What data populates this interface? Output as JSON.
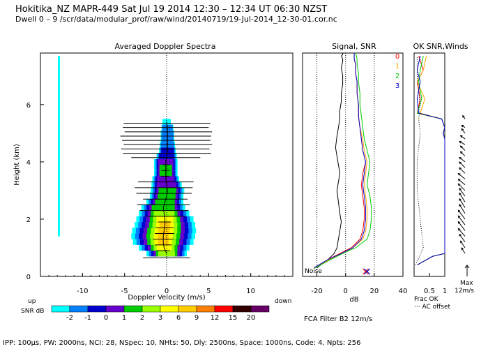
{
  "header": {
    "line1": "Hokitika_NZ   MAPR-449   Sat Jul 19 2014 12:30 – 12:34 UT 06:30 NZST",
    "line2": "Dwell   0 –  9   /scr/data/modular_prof/raw/wind/20140719/19-Jul-2014_12-30-01.cor.nc"
  },
  "footer": {
    "params": "IPP: 100µs,  PW: 2000ns,  NCI:  28,  NSpec: 10, NHts: 50,  Dly: 2500ns,  Space: 1000ns,  Code: 4,  Npts: 256",
    "fca": "FCA Filter B2 12m/s"
  },
  "colorbar": {
    "up_label": "up",
    "down_label": "down",
    "title": "SNR dB",
    "ticks": [
      "-2",
      "-1",
      "0",
      "1",
      "2",
      "3",
      "6",
      "9",
      "12",
      "15",
      "20"
    ],
    "colors": [
      "#00ffff",
      "#0080ff",
      "#0000cc",
      "#6600cc",
      "#00cc00",
      "#99ff00",
      "#ffff00",
      "#ffcc00",
      "#ff8000",
      "#ff0000",
      "#330000",
      "#660066"
    ]
  },
  "chart_data": [
    {
      "type": "heatmap",
      "title": "Averaged Doppler Spectra",
      "xlabel": "Doppler Velocity (m/s)",
      "ylabel": "Height (km)",
      "xlim": [
        -15,
        15
      ],
      "ylim": [
        0,
        7.8
      ],
      "xticks": [
        "-10",
        "-5",
        "0",
        "5",
        "10"
      ],
      "yticks": [
        "0",
        "2",
        "4",
        "6"
      ],
      "profile": [
        {
          "height": 0.8,
          "center": 0.0,
          "width": 2.4,
          "peak": 3
        },
        {
          "height": 1.0,
          "center": -0.3,
          "width": 3.0,
          "peak": 6
        },
        {
          "height": 1.2,
          "center": -0.4,
          "width": 3.6,
          "peak": 9
        },
        {
          "height": 1.4,
          "center": -0.4,
          "width": 3.8,
          "peak": 9
        },
        {
          "height": 1.6,
          "center": -0.3,
          "width": 3.8,
          "peak": 9
        },
        {
          "height": 1.8,
          "center": -0.2,
          "width": 3.6,
          "peak": 9
        },
        {
          "height": 2.0,
          "center": -0.2,
          "width": 3.4,
          "peak": 6
        },
        {
          "height": 2.2,
          "center": -0.3,
          "width": 3.0,
          "peak": 3
        },
        {
          "height": 2.4,
          "center": -0.4,
          "width": 2.6,
          "peak": 2
        },
        {
          "height": 2.6,
          "center": -0.2,
          "width": 2.2,
          "peak": 2
        },
        {
          "height": 2.8,
          "center": 0.0,
          "width": 2.0,
          "peak": 2
        },
        {
          "height": 3.0,
          "center": 0.1,
          "width": 2.0,
          "peak": 2
        },
        {
          "height": 3.2,
          "center": 0.0,
          "width": 1.8,
          "peak": 1
        },
        {
          "height": 3.4,
          "center": -0.1,
          "width": 1.6,
          "peak": 1
        },
        {
          "height": 3.6,
          "center": -0.1,
          "width": 1.4,
          "peak": 2
        },
        {
          "height": 3.8,
          "center": -0.1,
          "width": 1.4,
          "peak": 2
        },
        {
          "height": 4.0,
          "center": -0.1,
          "width": 1.4,
          "peak": 1
        },
        {
          "height": 4.2,
          "center": 0.0,
          "width": 1.2,
          "peak": 0
        },
        {
          "height": 4.4,
          "center": 0.1,
          "width": 1.0,
          "peak": 0
        },
        {
          "height": 4.6,
          "center": 0.1,
          "width": 0.9,
          "peak": -1
        },
        {
          "height": 4.8,
          "center": 0.1,
          "width": 0.8,
          "peak": -1
        },
        {
          "height": 5.0,
          "center": 0.1,
          "width": 0.8,
          "peak": -1
        },
        {
          "height": 5.2,
          "center": 0.1,
          "width": 0.7,
          "peak": -1
        },
        {
          "height": 5.4,
          "center": 0.0,
          "width": 0.5,
          "peak": -2
        }
      ],
      "error_bars": [
        {
          "height": 0.65,
          "low": -2.8,
          "high": 2.8
        },
        {
          "height": 0.9,
          "low": -1.2,
          "high": 0.4
        },
        {
          "height": 1.1,
          "low": -1.4,
          "high": 0.6
        },
        {
          "height": 1.3,
          "low": -1.6,
          "high": 0.8
        },
        {
          "height": 1.5,
          "low": -1.4,
          "high": 0.9
        },
        {
          "height": 1.7,
          "low": -1.3,
          "high": 0.8
        },
        {
          "height": 1.9,
          "low": -1.0,
          "high": 0.5
        },
        {
          "height": 2.1,
          "low": -2.5,
          "high": 2.2
        },
        {
          "height": 2.3,
          "low": -3.2,
          "high": 2.6
        },
        {
          "height": 2.5,
          "low": -3.5,
          "high": 2.8
        },
        {
          "height": 2.7,
          "low": -2.8,
          "high": 2.5
        },
        {
          "height": 2.9,
          "low": -3.6,
          "high": 3.0
        },
        {
          "height": 3.1,
          "low": -3.8,
          "high": 3.1
        },
        {
          "height": 3.3,
          "low": -3.4,
          "high": 3.2
        },
        {
          "height": 3.5,
          "low": -0.7,
          "high": 0.3
        },
        {
          "height": 3.7,
          "low": -0.6,
          "high": 0.3
        },
        {
          "height": 3.9,
          "low": -0.5,
          "high": 0.4
        },
        {
          "height": 4.15,
          "low": -4.2,
          "high": 4.0
        },
        {
          "height": 4.3,
          "low": -5.2,
          "high": 5.3
        },
        {
          "height": 4.45,
          "low": -5.4,
          "high": 5.1
        },
        {
          "height": 4.6,
          "low": -5.1,
          "high": 5.4
        },
        {
          "height": 4.75,
          "low": -5.3,
          "high": 5.2
        },
        {
          "height": 4.9,
          "low": -5.5,
          "high": 5.3
        },
        {
          "height": 5.05,
          "low": -5.0,
          "high": 5.4
        },
        {
          "height": 5.2,
          "low": -5.2,
          "high": 5.0
        },
        {
          "height": 5.35,
          "low": -5.1,
          "high": 5.2
        }
      ],
      "clutter_line": {
        "velocity": -12.8,
        "from": 1.4,
        "to": 7.7
      }
    },
    {
      "type": "line",
      "title": "Signal, SNR",
      "xlabel": "dB",
      "xlim": [
        -30,
        40
      ],
      "ylim": [
        0,
        7.8
      ],
      "xticks": [
        "-20",
        "0",
        "20",
        "40"
      ],
      "noise_label": "Noise",
      "beam_labels": [
        "0",
        "1",
        "2",
        "3"
      ],
      "series": [
        {
          "name": "Signal",
          "color": "#000000",
          "x": [
            -20,
            -12,
            -8,
            -6,
            -5,
            -4,
            -3,
            -4,
            -5,
            -6,
            -5,
            -4,
            -5,
            -6,
            -7,
            -6,
            -5,
            -4,
            -4,
            -3,
            -3,
            -2,
            -2,
            -3,
            -2,
            -2,
            -3,
            -2,
            -2
          ],
          "y": [
            0.3,
            0.6,
            0.8,
            1.0,
            1.3,
            1.6,
            1.9,
            2.2,
            2.6,
            3.0,
            3.3,
            3.6,
            3.9,
            4.2,
            4.5,
            4.9,
            5.2,
            5.5,
            5.8,
            6.1,
            6.4,
            6.7,
            7.0,
            7.3,
            7.5,
            7.6,
            7.7,
            7.75,
            7.8
          ]
        },
        {
          "name": "Beam 0",
          "color": "#ff0000",
          "x": [
            -22,
            -12,
            -4,
            4,
            10,
            12,
            13,
            13,
            12,
            11,
            12,
            14,
            12,
            11,
            10,
            9,
            9,
            8,
            8,
            7,
            7,
            6,
            6
          ],
          "y": [
            0.3,
            0.6,
            0.8,
            1.0,
            1.3,
            1.6,
            2.0,
            2.4,
            2.8,
            3.2,
            3.6,
            4.0,
            4.4,
            4.8,
            5.2,
            5.6,
            6.0,
            6.4,
            6.8,
            7.1,
            7.4,
            7.6,
            7.8
          ]
        },
        {
          "name": "Beam 1",
          "color": "#ffa500",
          "x": [
            -22,
            -11,
            -3,
            5,
            12,
            14,
            15,
            15,
            14,
            13,
            14,
            15,
            13,
            12,
            10,
            9,
            9,
            8,
            8,
            7,
            7,
            6,
            6
          ],
          "y": [
            0.3,
            0.6,
            0.8,
            1.0,
            1.3,
            1.6,
            2.0,
            2.4,
            2.8,
            3.2,
            3.6,
            4.0,
            4.4,
            4.8,
            5.2,
            5.6,
            6.0,
            6.4,
            6.8,
            7.1,
            7.4,
            7.6,
            7.8
          ]
        },
        {
          "name": "Beam 2",
          "color": "#00cc00",
          "x": [
            -21,
            -10,
            -2,
            7,
            15,
            17,
            18,
            18,
            17,
            15,
            16,
            17,
            15,
            13,
            12,
            11,
            10,
            10,
            9,
            9,
            8,
            8,
            7
          ],
          "y": [
            0.3,
            0.6,
            0.8,
            1.0,
            1.3,
            1.6,
            2.0,
            2.4,
            2.8,
            3.2,
            3.6,
            4.0,
            4.4,
            4.8,
            5.2,
            5.6,
            6.0,
            6.4,
            6.8,
            7.1,
            7.4,
            7.6,
            7.8
          ]
        },
        {
          "name": "Beam 3",
          "color": "#0000cc",
          "x": [
            -22,
            -12,
            -3,
            5,
            11,
            13,
            14,
            14,
            13,
            12,
            13,
            14,
            12,
            11,
            10,
            9,
            9,
            8,
            8,
            7,
            7,
            6,
            6
          ],
          "y": [
            0.3,
            0.6,
            0.8,
            1.0,
            1.3,
            1.6,
            2.0,
            2.4,
            2.8,
            3.2,
            3.6,
            4.0,
            4.4,
            4.8,
            5.2,
            5.6,
            6.0,
            6.4,
            6.8,
            7.1,
            7.4,
            7.6,
            7.8
          ]
        }
      ],
      "noise_markers": [
        {
          "x": 14,
          "color": "#ff0000"
        },
        {
          "x": 15,
          "color": "#0000cc"
        }
      ]
    },
    {
      "type": "line",
      "title": "OK SNR,Winds",
      "xlim": [
        0,
        1
      ],
      "ylim": [
        0,
        7.8
      ],
      "xticks": [
        "0.5",
        "1"
      ],
      "legend": [
        "Frac OK",
        "··· AC offset"
      ],
      "max_label": "Max",
      "max_value": "12m/s",
      "series": [
        {
          "name": "Beam 0",
          "color": "#ff0000",
          "x": [
            0.1,
            0.6,
            1.0,
            1.0,
            1.0,
            1.0,
            1.0,
            0.95,
            1.0,
            0.9,
            0.1,
            0.2,
            0.1,
            0.3,
            0.15
          ],
          "y": [
            0.4,
            0.7,
            0.8,
            2.0,
            3.0,
            4.0,
            4.8,
            5.0,
            5.2,
            5.5,
            5.7,
            6.2,
            6.8,
            7.2,
            7.7
          ]
        },
        {
          "name": "Beam 1",
          "color": "#ffa500",
          "x": [
            0.1,
            0.6,
            1.0,
            1.0,
            1.0,
            1.0,
            1.0,
            0.95,
            1.0,
            0.9,
            0.2,
            0.35,
            0.1,
            0.3,
            0.4
          ],
          "y": [
            0.4,
            0.7,
            0.8,
            2.0,
            3.0,
            4.0,
            4.8,
            5.0,
            5.2,
            5.5,
            5.7,
            6.2,
            6.8,
            7.2,
            7.7
          ]
        },
        {
          "name": "Beam 2",
          "color": "#00cc00",
          "x": [
            0.1,
            0.6,
            1.0,
            1.0,
            1.0,
            1.0,
            1.0,
            0.95,
            1.0,
            0.9,
            0.1,
            0.25,
            0.15,
            0.2,
            0.3
          ],
          "y": [
            0.4,
            0.7,
            0.8,
            2.0,
            3.0,
            4.0,
            4.8,
            5.0,
            5.2,
            5.5,
            5.7,
            6.2,
            6.8,
            7.2,
            7.7
          ]
        },
        {
          "name": "Beam 3",
          "color": "#0000cc",
          "x": [
            0.1,
            0.6,
            1.0,
            1.0,
            1.0,
            1.0,
            1.0,
            0.95,
            1.0,
            0.9,
            0.15,
            0.1,
            0.2,
            0.1,
            0.2
          ],
          "y": [
            0.4,
            0.7,
            0.8,
            2.0,
            3.0,
            4.0,
            4.8,
            5.0,
            5.2,
            5.5,
            5.7,
            6.2,
            6.8,
            7.2,
            7.7
          ]
        },
        {
          "name": "AC offset",
          "color": "#000000",
          "dotted": true,
          "x": [
            0.05,
            0.3,
            0.2,
            0.1,
            0.1,
            0.2,
            0.15,
            0.2,
            0.1,
            0.1
          ],
          "y": [
            0.4,
            1.0,
            2.0,
            3.0,
            4.0,
            5.0,
            5.5,
            6.0,
            7.0,
            7.7
          ]
        }
      ],
      "winds": [
        {
          "height": 0.8,
          "u": -0.3,
          "v": 0.5
        },
        {
          "height": 1.0,
          "u": -0.4,
          "v": 0.6
        },
        {
          "height": 1.2,
          "u": -0.5,
          "v": 0.7
        },
        {
          "height": 1.4,
          "u": -0.6,
          "v": 0.7
        },
        {
          "height": 1.6,
          "u": -0.6,
          "v": 0.8
        },
        {
          "height": 1.8,
          "u": -0.6,
          "v": 0.8
        },
        {
          "height": 2.0,
          "u": -0.6,
          "v": 0.8
        },
        {
          "height": 2.2,
          "u": -0.5,
          "v": 0.8
        },
        {
          "height": 2.4,
          "u": -0.5,
          "v": 0.8
        },
        {
          "height": 2.6,
          "u": -0.5,
          "v": 0.8
        },
        {
          "height": 2.8,
          "u": -0.5,
          "v": 0.7
        },
        {
          "height": 3.0,
          "u": -0.6,
          "v": 0.6
        },
        {
          "height": 3.2,
          "u": -0.6,
          "v": 0.5
        },
        {
          "height": 3.4,
          "u": -0.6,
          "v": 0.5
        },
        {
          "height": 3.6,
          "u": -0.5,
          "v": 0.5
        },
        {
          "height": 3.8,
          "u": -0.5,
          "v": 0.5
        },
        {
          "height": 4.0,
          "u": -0.5,
          "v": 0.4
        },
        {
          "height": 4.2,
          "u": -0.4,
          "v": 0.4
        },
        {
          "height": 4.4,
          "u": -0.4,
          "v": 0.4
        },
        {
          "height": 4.6,
          "u": -0.5,
          "v": 0.3
        },
        {
          "height": 4.8,
          "u": -0.4,
          "v": 0.3
        },
        {
          "height": 5.0,
          "u": -0.3,
          "v": 0.4
        },
        {
          "height": 5.2,
          "u": -0.3,
          "v": 0.2
        },
        {
          "height": 5.5,
          "u": -0.2,
          "v": 0.3
        }
      ]
    }
  ]
}
